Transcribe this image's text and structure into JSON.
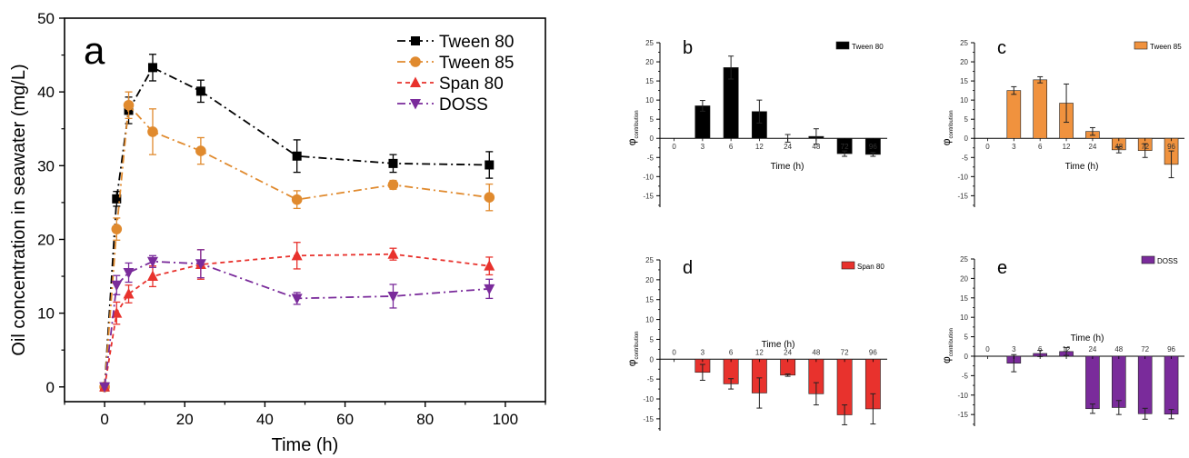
{
  "chart_data": [
    {
      "panel": "a",
      "type": "line",
      "xlabel": "Time (h)",
      "ylabel": "Oil concentration in seawater (mg/L)",
      "xlim": [
        -10,
        110
      ],
      "ylim": [
        -2,
        50
      ],
      "xticks": [
        0,
        20,
        40,
        60,
        80,
        100
      ],
      "yticks": [
        0,
        10,
        20,
        30,
        40,
        50
      ],
      "legend_position": "top-right",
      "series": [
        {
          "name": "Tween 80",
          "color": "#000000",
          "marker": "square",
          "dash": "dashdot",
          "x": [
            0,
            3,
            6,
            12,
            24,
            48,
            72,
            96
          ],
          "y": [
            0,
            25.5,
            37.5,
            43.3,
            40.1,
            31.3,
            30.3,
            30.1
          ],
          "err": [
            0,
            1.0,
            1.8,
            1.8,
            1.5,
            2.2,
            1.2,
            1.8
          ]
        },
        {
          "name": "Tween 85",
          "color": "#e08a2e",
          "marker": "circle",
          "dash": "dashdot",
          "x": [
            0,
            3,
            6,
            12,
            24,
            48,
            72,
            96
          ],
          "y": [
            0,
            21.4,
            38.2,
            34.6,
            32.0,
            25.4,
            27.4,
            25.7
          ],
          "err": [
            0,
            1.5,
            1.8,
            3.1,
            1.8,
            1.2,
            0.6,
            1.8
          ]
        },
        {
          "name": "Span 80",
          "color": "#e8322d",
          "marker": "triangle-up",
          "dash": "dashed",
          "x": [
            0,
            3,
            6,
            12,
            24,
            48,
            72,
            96
          ],
          "y": [
            0,
            10.0,
            12.6,
            15.0,
            16.6,
            17.8,
            18.0,
            16.4
          ],
          "err": [
            0,
            1.5,
            1.2,
            1.4,
            2.0,
            1.8,
            0.8,
            1.2
          ]
        },
        {
          "name": "DOSS",
          "color": "#7a2b9b",
          "marker": "triangle-down",
          "dash": "dashdot",
          "x": [
            0,
            3,
            6,
            12,
            24,
            48,
            72,
            96
          ],
          "y": [
            0,
            13.8,
            15.5,
            17.0,
            16.7,
            12.0,
            12.3,
            13.3
          ],
          "err": [
            0,
            1.3,
            1.3,
            0.8,
            1.9,
            0.8,
            1.6,
            1.3
          ]
        }
      ]
    },
    {
      "panel": "b",
      "type": "bar",
      "color": "#000000",
      "legend": "Tween 80",
      "xlabel": "Time (h)",
      "ylabel": "φ",
      "ylabel_sub": "contribution",
      "categories": [
        "0",
        "3",
        "6",
        "12",
        "24",
        "48",
        "72",
        "96"
      ],
      "values": [
        0,
        8.5,
        18.5,
        7.0,
        0,
        0.5,
        -4.0,
        -4.2
      ],
      "errors": [
        0,
        1.4,
        3.0,
        3.0,
        1.0,
        2.0,
        0.7,
        0.5
      ],
      "ylim": [
        -18,
        25
      ],
      "yticks": [
        -15,
        -10,
        -5,
        0,
        5,
        10,
        15,
        20,
        25
      ]
    },
    {
      "panel": "c",
      "type": "bar",
      "color": "#f0923e",
      "legend": "Tween 85",
      "xlabel": "Time (h)",
      "ylabel": "φ",
      "ylabel_sub": "contribution",
      "categories": [
        "0",
        "3",
        "6",
        "12",
        "24",
        "48",
        "72",
        "96"
      ],
      "values": [
        0,
        12.5,
        15.3,
        9.2,
        1.8,
        -3.0,
        -3.2,
        -6.8
      ],
      "errors": [
        0,
        1.0,
        0.8,
        5.0,
        1.0,
        0.8,
        1.8,
        3.5
      ],
      "ylim": [
        -18,
        25
      ],
      "yticks": [
        -15,
        -10,
        -5,
        0,
        5,
        10,
        15,
        20,
        25
      ]
    },
    {
      "panel": "d",
      "type": "bar",
      "color": "#e8322d",
      "legend": "Span 80",
      "xlabel": "Time (h)",
      "ylabel": "φ",
      "ylabel_sub": "contribution",
      "categories": [
        "0",
        "3",
        "6",
        "12",
        "24",
        "48",
        "72",
        "96"
      ],
      "values": [
        0,
        -3.3,
        -6.2,
        -8.5,
        -4.0,
        -8.7,
        -14.0,
        -12.5
      ],
      "errors": [
        0,
        2.0,
        1.3,
        3.8,
        0.3,
        2.8,
        2.5,
        3.8
      ],
      "ylim": [
        -18,
        25
      ],
      "yticks": [
        -15,
        -10,
        -5,
        0,
        5,
        10,
        15,
        20,
        25
      ]
    },
    {
      "panel": "e",
      "type": "bar",
      "color": "#7a2b9b",
      "legend": "DOSS",
      "xlabel": "Time (h)",
      "ylabel": "φ",
      "ylabel_sub": "contribution",
      "categories": [
        "0",
        "3",
        "6",
        "12",
        "24",
        "48",
        "72",
        "96"
      ],
      "values": [
        0,
        -1.8,
        0.7,
        1.2,
        -13.5,
        -13.2,
        -14.8,
        -14.9
      ],
      "errors": [
        0,
        2.2,
        0.8,
        1.0,
        1.2,
        1.8,
        1.4,
        1.2
      ],
      "ylim": [
        -18,
        25
      ],
      "yticks": [
        -15,
        -10,
        -5,
        0,
        5,
        10,
        15,
        20,
        25
      ]
    }
  ]
}
